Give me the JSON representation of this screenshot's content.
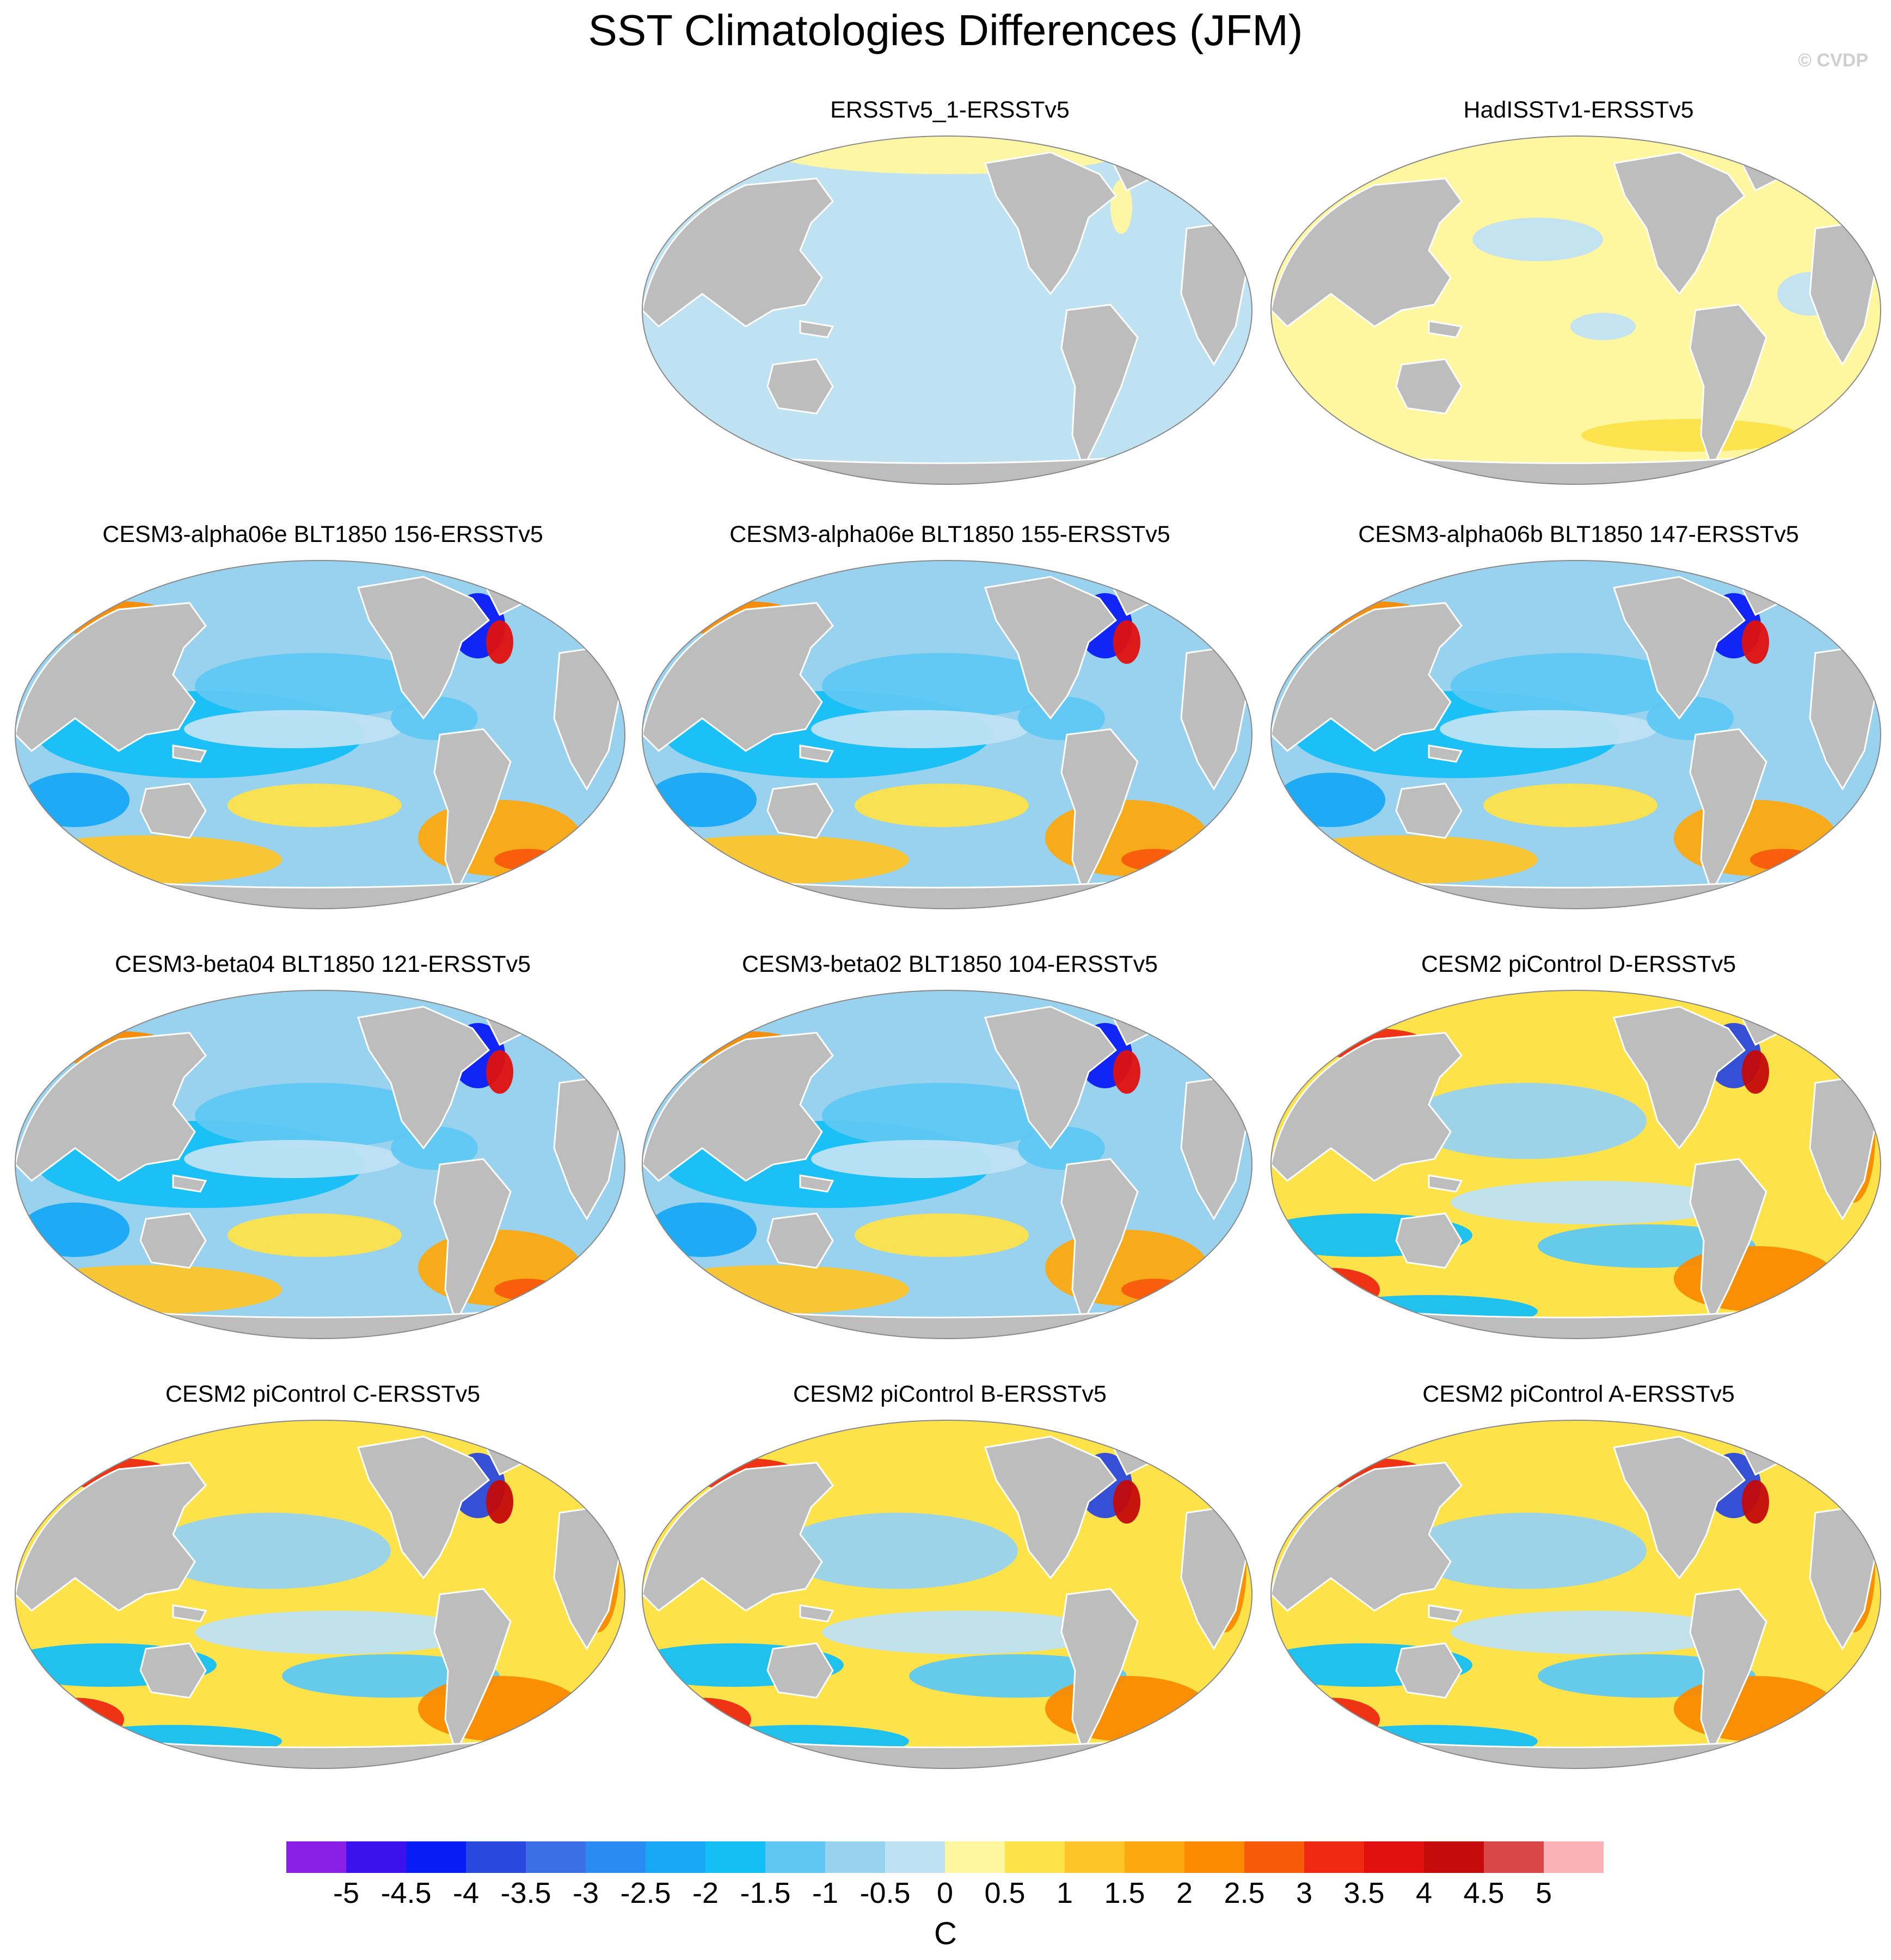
{
  "title": "SST Climatologies Differences (JFM)",
  "credit": "© CVDP",
  "colors": {
    "land": "#bdbdbd",
    "landBorder": "#8a8a8a",
    "coast": "#ffffff"
  },
  "panels": [
    {
      "id": "p1",
      "title": "ERSSTv5_1-ERSSTv5",
      "style": "uniform-cold"
    },
    {
      "id": "p2",
      "title": "HadISSTv1-ERSSTv5",
      "style": "uniform-warm"
    },
    {
      "id": "p3",
      "title": "CESM3-alpha06e BLT1850 156-ERSSTv5",
      "style": "cold-bias"
    },
    {
      "id": "p4",
      "title": "CESM3-alpha06e BLT1850 155-ERSSTv5",
      "style": "cold-bias"
    },
    {
      "id": "p5",
      "title": "CESM3-alpha06b BLT1850 147-ERSSTv5",
      "style": "cold-bias"
    },
    {
      "id": "p6",
      "title": "CESM3-beta04 BLT1850 121-ERSSTv5",
      "style": "cold-bias"
    },
    {
      "id": "p7",
      "title": "CESM3-beta02 BLT1850 104-ERSSTv5",
      "style": "cold-bias"
    },
    {
      "id": "p8",
      "title": "CESM2 piControl D-ERSSTv5",
      "style": "warm-bias"
    },
    {
      "id": "p9",
      "title": "CESM2 piControl C-ERSSTv5",
      "style": "warm-bias"
    },
    {
      "id": "p10",
      "title": "CESM2 piControl B-ERSSTv5",
      "style": "warm-bias"
    },
    {
      "id": "p11",
      "title": "CESM2 piControl A-ERSSTv5",
      "style": "warm-bias"
    }
  ],
  "colorbar": {
    "unit": "C",
    "labels": [
      "-5",
      "-4.5",
      "-4",
      "-3.5",
      "-3",
      "-2.5",
      "-2",
      "-1.5",
      "-1",
      "-0.5",
      "0",
      "0.5",
      "1",
      "1.5",
      "2",
      "2.5",
      "3",
      "3.5",
      "4",
      "4.5",
      "5"
    ],
    "colors": [
      "#8a1fe6",
      "#3d10ee",
      "#0a1cf5",
      "#2a48dc",
      "#3a6fe6",
      "#2a8cf2",
      "#18a8f5",
      "#14bff5",
      "#5ec8f2",
      "#98d2ee",
      "#bfe2f3",
      "#fff7a0",
      "#fde24a",
      "#fdc52a",
      "#fca80e",
      "#fb8a00",
      "#f85a0c",
      "#ee2a12",
      "#e0100e",
      "#c40a0a",
      "#d84646",
      "#fbb2b6"
    ]
  }
}
